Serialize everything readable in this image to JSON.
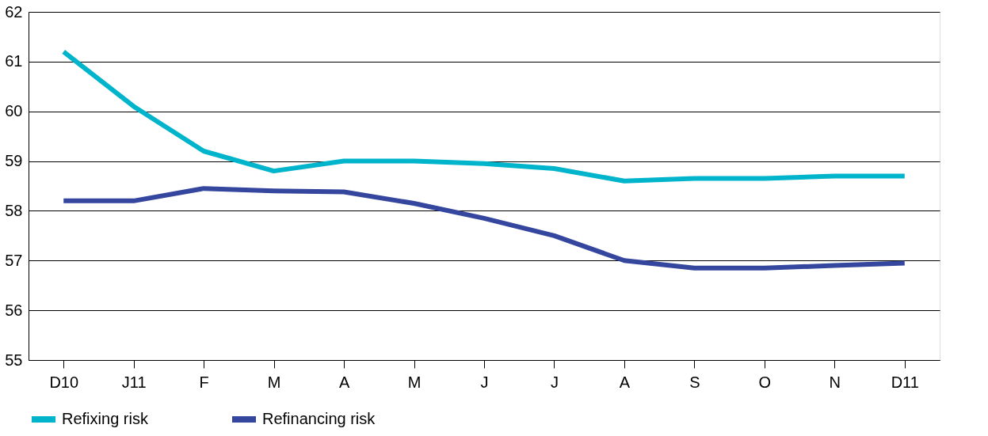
{
  "chart_data": {
    "type": "line",
    "categories": [
      "D10",
      "J11",
      "F",
      "M",
      "A",
      "M",
      "J",
      "J",
      "A",
      "S",
      "O",
      "N",
      "D11"
    ],
    "series": [
      {
        "name": "Refixing risk",
        "color": "#00b4cc",
        "values": [
          61.2,
          60.1,
          59.2,
          58.8,
          59.0,
          59.0,
          58.95,
          58.85,
          58.6,
          58.65,
          58.65,
          58.7,
          58.7
        ]
      },
      {
        "name": "Refinancing risk",
        "color": "#34469e",
        "values": [
          58.2,
          58.2,
          58.45,
          58.4,
          58.38,
          58.15,
          57.85,
          57.5,
          57.0,
          56.85,
          56.85,
          56.9,
          56.95
        ]
      }
    ],
    "ylim": [
      55,
      62
    ],
    "yticks": [
      55,
      56,
      57,
      58,
      59,
      60,
      61,
      62
    ],
    "grid": "y",
    "legend": "bottom",
    "marker": "none",
    "line_style": "solid"
  }
}
